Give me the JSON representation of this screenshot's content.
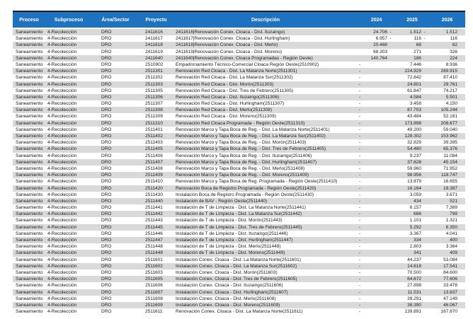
{
  "table": {
    "columns": [
      {
        "key": "proceso",
        "label": "Proceso"
      },
      {
        "key": "subproceso",
        "label": "Subproceso"
      },
      {
        "key": "area",
        "label": "Área/Sector"
      },
      {
        "key": "proyecto",
        "label": "Proyecto"
      },
      {
        "key": "descripcion",
        "label": "Descripción"
      },
      {
        "key": "y2024",
        "label": "2024"
      },
      {
        "key": "y2025",
        "label": "2025"
      },
      {
        "key": "y2026",
        "label": "2026"
      }
    ],
    "colors": {
      "header_bg": "#1F72C0",
      "header_text": "#FFFFFF",
      "stripe": "#D9D9D9",
      "body_text": "#1A1A1A"
    },
    "rows": [
      [
        "Saneamiento",
        "4-Recolección",
        "DRO",
        "2411616",
        "2411616|Renovación Conex. Cloaca - Dist. Ituzaingo)",
        "24.706 -",
        "1.512 -",
        "1.512"
      ],
      [
        "Saneamiento",
        "4-Recolección",
        "DRO",
        "2411617",
        "2411617|Renovación Conex. Cloaca - Dist. Hurlingham)",
        "6.957 -",
        "116 -",
        "116"
      ],
      [
        "Saneamiento",
        "4-Recolección",
        "DRO",
        "2411618",
        "2411618|Renovación Conex. Cloaca - Dist. Merlo)",
        "20.488",
        "68",
        "82"
      ],
      [
        "Saneamiento",
        "4-Recolección",
        "DRO",
        "2411619",
        "2411619|Renovación Conex. Cloaca - Dist. Moreno)",
        "68.303",
        "271",
        "326"
      ],
      [
        "Saneamiento",
        "4-Recolección",
        "DRO",
        "2411640",
        "2411640|Renovación Conex. Cloaca Programadas - Región Oeste)",
        "140.764",
        "186",
        "224"
      ],
      [
        "Saneamiento",
        "4-Recolección",
        "DRO",
        "2510902",
        "Empadronamiento Técnico-Comercial Cloaca Región Oeste(2510902)",
        "-",
        "7.446",
        "8.936"
      ],
      [
        "Saneamiento",
        "4-Recolección",
        "DRO",
        "2511301",
        "Renovación Red Cloaca - Dist. La Matanza Norte(2511301)",
        "-",
        "224.929",
        "269.915"
      ],
      [
        "Saneamiento",
        "4-Recolección",
        "DRO",
        "2511302",
        "Renovación Red Cloaca - Dist. La Matanza Sur(2511302)",
        "-",
        "72.842",
        "87.410"
      ],
      [
        "Saneamiento",
        "4-Recolección",
        "DRO",
        "2511303",
        "Renovación Red Cloaca - Dist. Morón(2511303)",
        "-",
        "24.801",
        "29.761"
      ],
      [
        "Saneamiento",
        "4-Recolección",
        "DRO",
        "2511305",
        "Renovación Red Cloaca - Dist. Tres de Febrero(2511305)",
        "-",
        "61.847",
        "74.217"
      ],
      [
        "Saneamiento",
        "4-Recolección",
        "DRO",
        "2511306",
        "Renovación Red Cloaca - Dist. Ituzaingo(2511306)",
        "-",
        "4.584",
        "5.501"
      ],
      [
        "Saneamiento",
        "4-Recolección",
        "DRO",
        "2511307",
        "Renovación Red Cloaca - Dist. Hurlingham(2511307)",
        "-",
        "3.458",
        "4.150"
      ],
      [
        "Saneamiento",
        "4-Recolección",
        "DRO",
        "2511308",
        "Renovación Red Cloaca - Dist. Merlo(2511308)",
        "-",
        "87.703",
        "105.244"
      ],
      [
        "Saneamiento",
        "4-Recolección",
        "DRO",
        "2511309",
        "Renovación Red Cloaca - Dist. Moreno(2511309)",
        "-",
        "43.484",
        "52.181"
      ],
      [
        "Saneamiento",
        "4-Recolección",
        "DRO",
        "2511310",
        "Renovación Red Cloaca Programada - Región Oeste(2511310)",
        "-",
        "173.898",
        "208.677"
      ],
      [
        "Saneamiento",
        "4-Recolección",
        "DRO",
        "2511401",
        "Renovación Marco y Tapa Boca de Reg. - Dist. La Matanza Norte(2511401)",
        "-",
        "49.200",
        "59.040"
      ],
      [
        "Saneamiento",
        "4-Recolección",
        "DRO",
        "2511402",
        "Renovación Marco y Tapa Boca de Reg. - Dist. La Matanza Sur(2511402)",
        "-",
        "128.302",
        "153.962"
      ],
      [
        "Saneamiento",
        "4-Recolección",
        "DRO",
        "2511403",
        "Renovación Marco y Tapa Boca de Reg. - Dist. Morón(2511403)",
        "-",
        "32.829",
        "39.395"
      ],
      [
        "Saneamiento",
        "4-Recolección",
        "DRO",
        "2511405",
        "Renovación Marco y Tapa Boca de Reg. - Dist. Tres de Febrero(2511405)",
        "-",
        "54.480",
        "65.376"
      ],
      [
        "Saneamiento",
        "4-Recolección",
        "DRO",
        "2511406",
        "Renovación Marco y Tapa Boca de Reg. - Dist. Ituzaingo(2511406)",
        "-",
        "9.237",
        "11.084"
      ],
      [
        "Saneamiento",
        "4-Recolección",
        "DRO",
        "2511407",
        "Renovación Marco y Tapa Boca de Reg. - Dist. Hurlingham(2511407)",
        "-",
        "37.628",
        "45.154"
      ],
      [
        "Saneamiento",
        "4-Recolección",
        "DRO",
        "2511408",
        "Renovación Marco y Tapa Boca de Reg. - Dist. Merlo(2511408)",
        "-",
        "59.960",
        "71.952"
      ],
      [
        "Saneamiento",
        "4-Recolección",
        "DRO",
        "2511409",
        "Renovación Marco y Tapa Boca de Reg. - Dist. Moreno(2511409)",
        "-",
        "98.956",
        "118.747"
      ],
      [
        "Saneamiento",
        "4-Recolección",
        "DRO",
        "2511410",
        "Renovación Marco y Tapa Boca de Reg. Programada - Región Oeste(2511410)",
        "-",
        "13.879",
        "16.655"
      ],
      [
        "Saneamiento",
        "4-Recolección",
        "DRO",
        "2511420",
        "Renovación Boca de Registro Programada - Región Oeste(2511420)",
        "-",
        "16.164",
        "19.397"
      ],
      [
        "Saneamiento",
        "4-Recolección",
        "DRO",
        "2511430",
        "Instalación Boca de Registro Programada - Región Oeste(2511430)",
        "-",
        "3.059",
        "3.671"
      ],
      [
        "Saneamiento",
        "4-Recolección",
        "DRO",
        "2511440",
        "Instalación de BAV - Región Oeste(2511440)",
        "-",
        "434",
        "521"
      ],
      [
        "Saneamiento",
        "4-Recolección",
        "DRO",
        "2511441",
        "Instalación de T de Limpieza - Dist. La Matanza Norte(2511441)",
        "-",
        "6.157",
        "7.389"
      ],
      [
        "Saneamiento",
        "4-Recolección",
        "DRO",
        "2511442",
        "Instalación de T de Limpieza - Dist. La Matanza Sur(2511442)",
        "-",
        "666",
        "799"
      ],
      [
        "Saneamiento",
        "4-Recolección",
        "DRO",
        "2511443",
        "Instalación de T de Limpieza - Dist. Morón(2511443)",
        "-",
        "1.101",
        "1.321"
      ],
      [
        "Saneamiento",
        "4-Recolección",
        "DRO",
        "2511445",
        "Instalación de T de Limpieza - Dist. Tres de Febrero(2511445)",
        "-",
        "5.292",
        "6.350"
      ],
      [
        "Saneamiento",
        "4-Recolección",
        "DRO",
        "2511446",
        "Instalación de T de Limpieza - Dist. Ituzaingo(2511446)",
        "-",
        "3.367",
        "4.041"
      ],
      [
        "Saneamiento",
        "4-Recolección",
        "DRO",
        "2511447",
        "Instalación de T de Limpieza - Dist. Hurlingham(2511447)",
        "-",
        "334",
        "400"
      ],
      [
        "Saneamiento",
        "4-Recolección",
        "DRO",
        "2511448",
        "Instalación de T de Limpieza - Dist. Merlo(2511448)",
        "-",
        "2.803",
        "3.364"
      ],
      [
        "Saneamiento",
        "4-Recolección",
        "DRO",
        "2511449",
        "Instalación de T de Limpieza - Dist. Moreno(2511449)",
        "-",
        "341",
        "409"
      ],
      [
        "Saneamiento",
        "4-Recolección",
        "DRO",
        "2511601",
        "Instalación Conex. Cloaca - Dist. La Matanza Norte(2511601)",
        "-",
        "44.237",
        "53.084"
      ],
      [
        "Saneamiento",
        "4-Recolección",
        "DRO",
        "2511602",
        "Instalación Conex. Cloaca - Dist. La Matanza Sur(2511602)",
        "-",
        "14.618",
        "17.541"
      ],
      [
        "Saneamiento",
        "4-Recolección",
        "DRO",
        "2511603",
        "Instalación Conex. Cloaca - Dist. Morón(2511603)",
        "-",
        "70.500",
        "84.600"
      ],
      [
        "Saneamiento",
        "4-Recolección",
        "DRO",
        "2511605",
        "Instalación Conex. Cloaca - Dist. Tres de Febrero(2511605)",
        "-",
        "64.672",
        "77.606"
      ],
      [
        "Saneamiento",
        "4-Recolección",
        "DRO",
        "2511606",
        "Instalación Conex. Cloaca - Dist. Ituzaingo(2511606)",
        "-",
        "27.898",
        "33.478"
      ],
      [
        "Saneamiento",
        "4-Recolección",
        "DRO",
        "2511607",
        "Instalación Conex. Cloaca - Dist. Hurlingham(2511607)",
        "-",
        "11.531",
        "13.837"
      ],
      [
        "Saneamiento",
        "4-Recolección",
        "DRO",
        "2511608",
        "Instalación Conex. Cloaca - Dist. Merlo(2511608)",
        "-",
        "39.291",
        "47.149"
      ],
      [
        "Saneamiento",
        "4-Recolección",
        "DRO",
        "2511609",
        "Instalación Conex. Cloaca - Dist. Moreno(2511609)",
        "-",
        "38.390",
        "46.067"
      ],
      [
        "Saneamiento",
        "4-Recolección",
        "DRO",
        "2511611",
        "Renovación Conex. Cloaca - Dist. La Matanza Norte(2511611)",
        "-",
        "139.891",
        "167.870"
      ]
    ]
  }
}
